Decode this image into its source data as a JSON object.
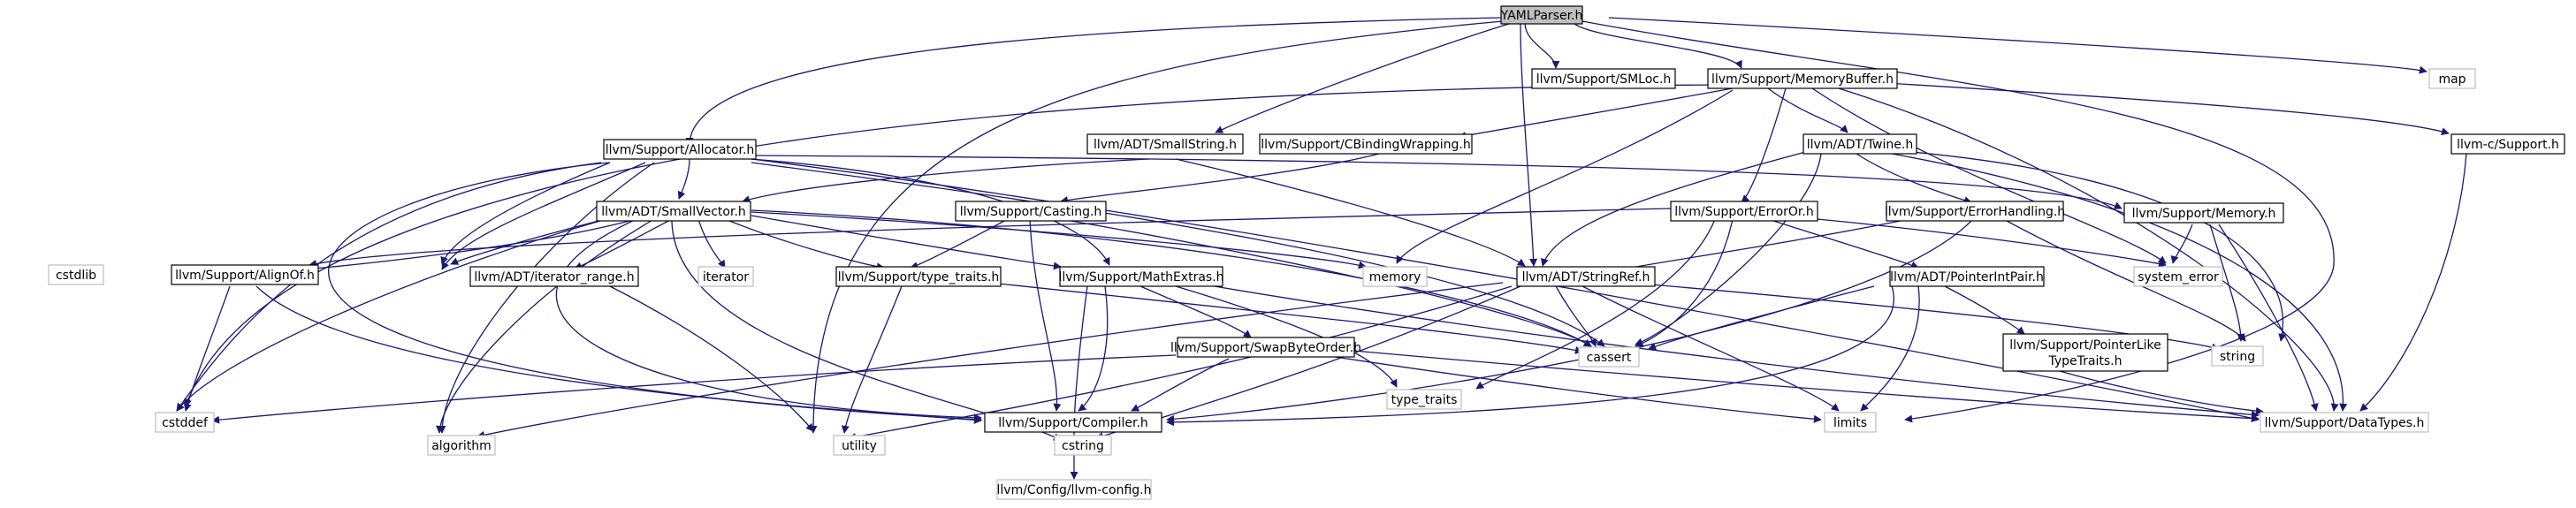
{
  "colors": {
    "edge": "#191970",
    "external_border": "#bfbfbf",
    "root_fill": "#bfbfbf",
    "node_border": "#000000"
  },
  "nodes": {
    "root": "YAMLParser.h",
    "smloc": "llvm/Support/SMLoc.h",
    "memorybuffer": "llvm/Support/MemoryBuffer.h",
    "map": "map",
    "allocator": "llvm/Support/Allocator.h",
    "smallstring": "llvm/ADT/SmallString.h",
    "cbinding": "llvm/Support/CBindingWrapping.h",
    "twine": "llvm/ADT/Twine.h",
    "csupport": "llvm-c/Support.h",
    "smallvector": "llvm/ADT/SmallVector.h",
    "casting": "llvm/Support/Casting.h",
    "erroror": "llvm/Support/ErrorOr.h",
    "errorhandling": "llvm/Support/ErrorHandling.h",
    "memory_h": "llvm/Support/Memory.h",
    "cstdlib": "cstdlib",
    "alignof": "llvm/Support/AlignOf.h",
    "iterator_range": "llvm/ADT/iterator_range.h",
    "iterator": "iterator",
    "type_traits_h": "llvm/Support/type_traits.h",
    "mathextras": "llvm/Support/MathExtras.h",
    "memory": "memory",
    "stringref": "llvm/ADT/StringRef.h",
    "pointerintpair": "llvm/ADT/PointerIntPair.h",
    "system_error": "system_error",
    "string": "string",
    "algorithm": "algorithm",
    "utility": "utility",
    "cstring": "cstring",
    "type_traits": "type_traits",
    "cassert": "cassert",
    "swapbyteorder": "llvm/Support/SwapByteOrder.h",
    "pointerlike_1": "llvm/Support/PointerLike",
    "pointerlike_2": "TypeTraits.h",
    "cstddef": "cstddef",
    "compiler": "llvm/Support/Compiler.h",
    "limits": "limits",
    "datatypes": "llvm/Support/DataTypes.h",
    "llvmconfig": "llvm/Config/llvm-config.h"
  }
}
